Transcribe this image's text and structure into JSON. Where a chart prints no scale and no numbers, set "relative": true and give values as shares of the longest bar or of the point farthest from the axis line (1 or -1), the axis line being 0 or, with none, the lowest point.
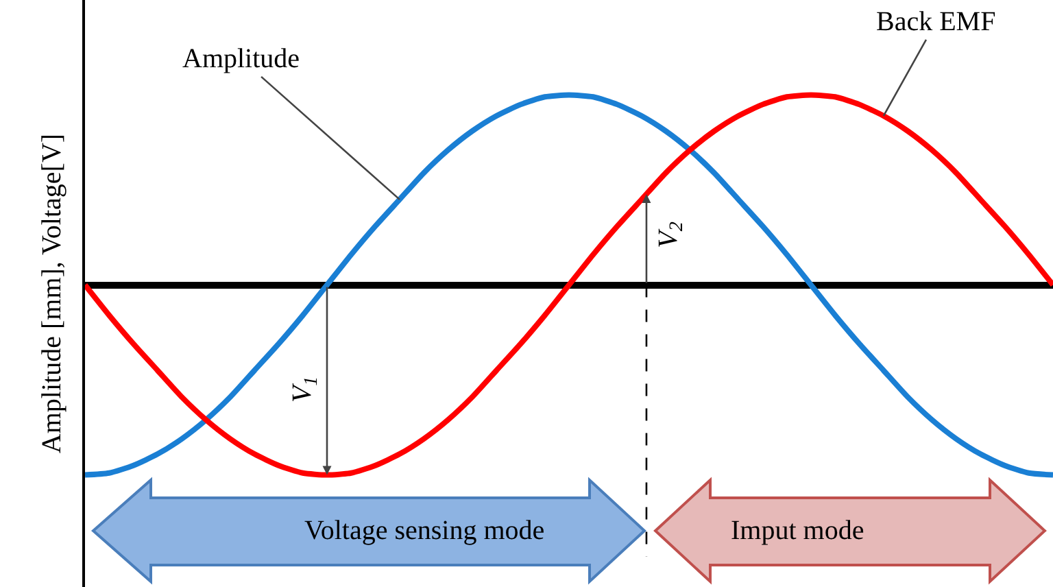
{
  "chart_data": {
    "type": "line",
    "relative": true,
    "ylabel": "Amplitude [mm], Voltage[V]",
    "categories": [
      null,
      null,
      null,
      null,
      null,
      null,
      null,
      null,
      null,
      null,
      null,
      null,
      null,
      null,
      null,
      null,
      null,
      null,
      null,
      null,
      null,
      null,
      null,
      null,
      null,
      null,
      null,
      null,
      null,
      null,
      null,
      null,
      null,
      null,
      null,
      null,
      null,
      null,
      null,
      null,
      null
    ],
    "series": [
      {
        "color": "#1a7fd4",
        "values": [
          -1,
          -0.99,
          -0.95,
          -0.89,
          -0.81,
          -0.71,
          -0.59,
          -0.45,
          -0.31,
          -0.16,
          0,
          0.16,
          0.31,
          0.45,
          0.59,
          0.71,
          0.81,
          0.89,
          0.95,
          0.99,
          1,
          0.99,
          0.95,
          0.89,
          0.81,
          0.71,
          0.59,
          0.45,
          0.31,
          0.16,
          0,
          -0.16,
          -0.31,
          -0.45,
          -0.59,
          -0.71,
          -0.81,
          -0.89,
          -0.95,
          -0.99,
          -1
        ]
      },
      {
        "color": "#ff0000",
        "values": [
          0,
          -0.16,
          -0.31,
          -0.45,
          -0.59,
          -0.71,
          -0.81,
          -0.89,
          -0.95,
          -0.99,
          -1,
          -0.99,
          -0.95,
          -0.89,
          -0.81,
          -0.71,
          -0.59,
          -0.45,
          -0.31,
          -0.16,
          0,
          0.16,
          0.31,
          0.45,
          0.59,
          0.71,
          0.81,
          0.89,
          0.95,
          0.99,
          1,
          0.99,
          0.95,
          0.89,
          0.81,
          0.71,
          0.59,
          0.45,
          0.31,
          0.16,
          0
        ]
      }
    ],
    "annotations": [
      "Amplitude",
      "Back EMF",
      "V$_{1}$",
      "V$_{2}$",
      "Voltage sensing mode",
      "Imput mode"
    ],
    "marker": "none",
    "line_style": "solid"
  }
}
